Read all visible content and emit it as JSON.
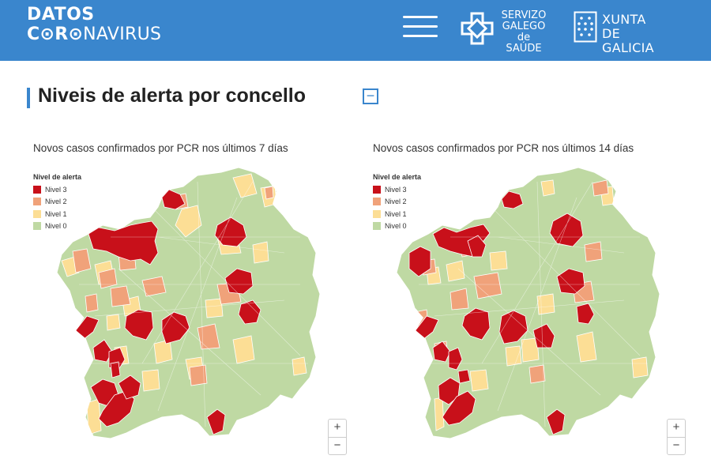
{
  "header": {
    "logo_line1": "DATOS",
    "logo_line2a": "C",
    "logo_line2b": "R",
    "logo_line2c": "NAVIRUS",
    "sergas_line1": "SERVIZO",
    "sergas_line2": "GALEGO",
    "sergas_line3": "de SAÚDE",
    "xunta_line1": "XUNTA",
    "xunta_line2": "DE GALICIA"
  },
  "section": {
    "title": "Niveis de alerta por concello",
    "collapse_symbol": "−"
  },
  "legend": {
    "title": "Nivel de alerta",
    "items": [
      {
        "label": "Nivel 3",
        "color": "#c8101a"
      },
      {
        "label": "Nivel 2",
        "color": "#f0a27a"
      },
      {
        "label": "Nivel 1",
        "color": "#fcde95"
      },
      {
        "label": "Nivel 0",
        "color": "#bfd9a3"
      }
    ]
  },
  "maps": [
    {
      "title": "Novos casos confirmados por PCR nos últimos 7 días"
    },
    {
      "title": "Novos casos confirmados por PCR nos últimos 14 días"
    }
  ],
  "zoom": {
    "in": "+",
    "out": "−"
  },
  "colors": {
    "header_bg": "#3a86cd",
    "base": "#bfd9a3",
    "border": "#ffffff"
  }
}
